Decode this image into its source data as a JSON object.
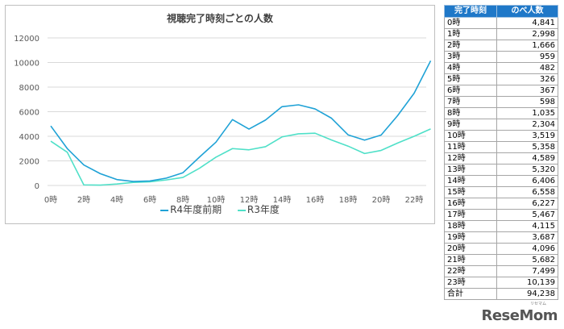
{
  "chart_data": {
    "type": "line",
    "title": "視聴完了時刻ごとの人数",
    "x": [
      "0時",
      "1時",
      "2時",
      "3時",
      "4時",
      "5時",
      "6時",
      "7時",
      "8時",
      "9時",
      "10時",
      "11時",
      "12時",
      "13時",
      "14時",
      "15時",
      "16時",
      "17時",
      "18時",
      "19時",
      "20時",
      "21時",
      "22時",
      "23時"
    ],
    "xtick_labels": [
      "0時",
      "2時",
      "4時",
      "6時",
      "8時",
      "10時",
      "12時",
      "14時",
      "16時",
      "18時",
      "20時",
      "22時"
    ],
    "ylim": [
      0,
      12000
    ],
    "yticks": [
      "0",
      "2000",
      "4000",
      "6000",
      "8000",
      "10000",
      "12000"
    ],
    "grid": true,
    "legend": "bottom",
    "series": [
      {
        "name": "R4年度前期",
        "color": "#1fa2d6",
        "values": [
          4841,
          2998,
          1666,
          959,
          482,
          326,
          367,
          598,
          1035,
          2304,
          3519,
          5358,
          4589,
          5320,
          6406,
          6558,
          6227,
          5467,
          4115,
          3687,
          4096,
          5682,
          7499,
          10139
        ]
      },
      {
        "name": "R3年度",
        "color": "#4fe0c8",
        "values": [
          3600,
          2700,
          50,
          30,
          120,
          250,
          300,
          450,
          650,
          1400,
          2300,
          3000,
          2900,
          3150,
          3950,
          4200,
          4250,
          3700,
          3200,
          2600,
          2850,
          3450,
          4000,
          4600
        ]
      }
    ]
  },
  "table": {
    "headers": [
      "完了時刻",
      "のべ人数"
    ],
    "rows": [
      [
        "0時",
        "4,841"
      ],
      [
        "1時",
        "2,998"
      ],
      [
        "2時",
        "1,666"
      ],
      [
        "3時",
        "959"
      ],
      [
        "4時",
        "482"
      ],
      [
        "5時",
        "326"
      ],
      [
        "6時",
        "367"
      ],
      [
        "7時",
        "598"
      ],
      [
        "8時",
        "1,035"
      ],
      [
        "9時",
        "2,304"
      ],
      [
        "10時",
        "3,519"
      ],
      [
        "11時",
        "5,358"
      ],
      [
        "12時",
        "4,589"
      ],
      [
        "13時",
        "5,320"
      ],
      [
        "14時",
        "6,406"
      ],
      [
        "15時",
        "6,558"
      ],
      [
        "16時",
        "6,227"
      ],
      [
        "17時",
        "5,467"
      ],
      [
        "18時",
        "4,115"
      ],
      [
        "19時",
        "3,687"
      ],
      [
        "20時",
        "4,096"
      ],
      [
        "21時",
        "5,682"
      ],
      [
        "22時",
        "7,499"
      ],
      [
        "23時",
        "10,139"
      ],
      [
        "合計",
        "94,238"
      ]
    ]
  },
  "logo": {
    "text": "ReseMom",
    "sub": "リセマム"
  }
}
